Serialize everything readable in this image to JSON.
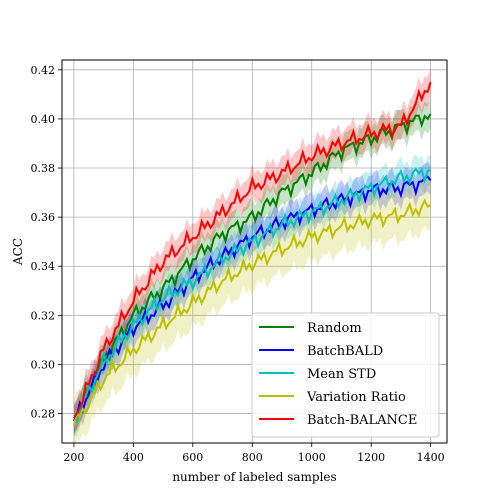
{
  "chart_data": {
    "type": "line",
    "title": "",
    "xlabel": "number of labeled samples",
    "ylabel": "ACC",
    "xlim": [
      160,
      1455
    ],
    "ylim": [
      0.268,
      0.424
    ],
    "xticks": [
      200,
      400,
      600,
      800,
      1000,
      1200,
      1400
    ],
    "yticks": [
      0.28,
      0.3,
      0.32,
      0.34,
      0.36,
      0.38,
      0.4,
      0.42
    ],
    "grid": true,
    "legend_position": "lower-right",
    "x": [
      200,
      300,
      400,
      500,
      600,
      700,
      800,
      900,
      1000,
      1100,
      1200,
      1300,
      1400
    ],
    "series": [
      {
        "name": "Random",
        "color": "#008000",
        "values": [
          0.277,
          0.302,
          0.32,
          0.331,
          0.343,
          0.353,
          0.36,
          0.37,
          0.378,
          0.387,
          0.392,
          0.397,
          0.402
        ],
        "band": 0.006
      },
      {
        "name": "BatchBALD",
        "color": "#0000ff",
        "values": [
          0.277,
          0.3,
          0.315,
          0.324,
          0.335,
          0.344,
          0.352,
          0.358,
          0.363,
          0.367,
          0.371,
          0.372,
          0.375
        ],
        "band": 0.006
      },
      {
        "name": "Mean STD",
        "color": "#00bfbf",
        "values": [
          0.277,
          0.301,
          0.316,
          0.327,
          0.334,
          0.343,
          0.35,
          0.357,
          0.362,
          0.367,
          0.372,
          0.376,
          0.379
        ],
        "band": 0.006
      },
      {
        "name": "Variation Ratio",
        "color": "#bfbf00",
        "values": [
          0.275,
          0.294,
          0.306,
          0.316,
          0.325,
          0.334,
          0.341,
          0.347,
          0.352,
          0.356,
          0.359,
          0.361,
          0.365
        ],
        "band": 0.01
      },
      {
        "name": "Batch-BALANCE",
        "color": "#ff0000",
        "values": [
          0.278,
          0.306,
          0.326,
          0.342,
          0.352,
          0.362,
          0.372,
          0.378,
          0.385,
          0.39,
          0.394,
          0.397,
          0.415
        ],
        "band": 0.006
      }
    ]
  }
}
